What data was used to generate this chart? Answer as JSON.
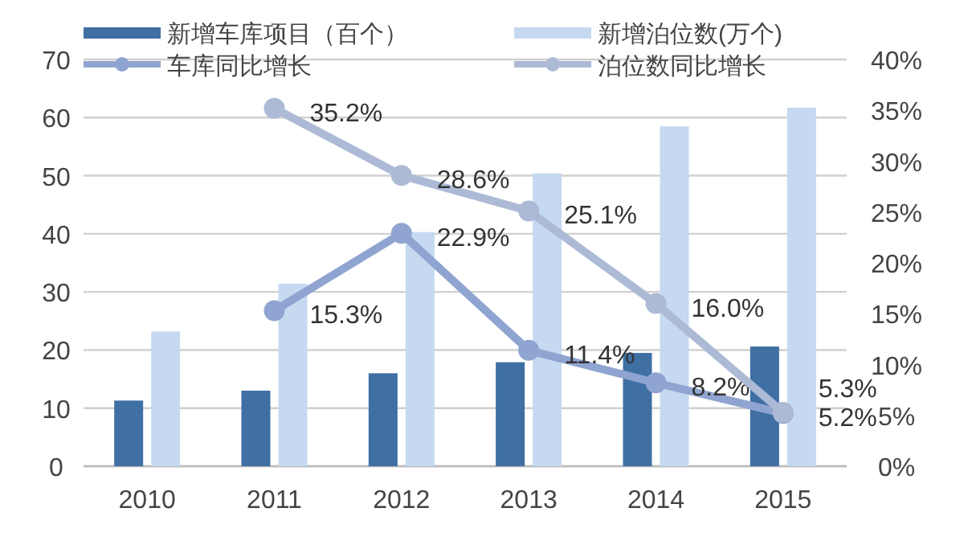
{
  "chart_data": {
    "type": "bar",
    "categories": [
      "2010",
      "2011",
      "2012",
      "2013",
      "2014",
      "2015"
    ],
    "series": [
      {
        "name": "新增车库项目（百个）",
        "color": "#3f6fa3",
        "values": [
          11.3,
          13.0,
          16.0,
          17.9,
          19.5,
          20.6
        ]
      },
      {
        "name": "新增泊位数(万个)",
        "color": "#c5d9f0",
        "values": [
          23.2,
          31.4,
          40.3,
          50.4,
          58.5,
          61.7
        ]
      },
      {
        "name": "车库同比增长",
        "type": "line",
        "axis": "y2",
        "color": "#8fa4d0",
        "values": [
          null,
          15.3,
          22.9,
          11.4,
          8.2,
          5.2
        ],
        "value_labels": [
          null,
          "15.3%",
          "22.9%",
          "11.4%",
          "8.2%",
          "5.2%"
        ]
      },
      {
        "name": "泊位数同比增长",
        "type": "line",
        "axis": "y2",
        "color": "#adbad6",
        "values": [
          null,
          35.2,
          28.6,
          25.1,
          16.0,
          5.3
        ],
        "value_labels": [
          null,
          "35.2%",
          "28.6%",
          "25.1%",
          "16.0%",
          "5.3%"
        ]
      }
    ],
    "ylim": [
      0,
      70
    ],
    "yticks": [
      0,
      10,
      20,
      30,
      40,
      50,
      60,
      70
    ],
    "y2lim": [
      0,
      40
    ],
    "y2ticks": [
      {
        "value": 0,
        "label": "0%"
      },
      {
        "value": 5,
        "label": "5%"
      },
      {
        "value": 10,
        "label": "10%"
      },
      {
        "value": 15,
        "label": "15%"
      },
      {
        "value": 20,
        "label": "20%"
      },
      {
        "value": 25,
        "label": "25%"
      },
      {
        "value": 30,
        "label": "30%"
      },
      {
        "value": 35,
        "label": "35%"
      },
      {
        "value": 40,
        "label": "40%"
      }
    ],
    "grid": "y",
    "legend": "top",
    "marker": "circle"
  }
}
